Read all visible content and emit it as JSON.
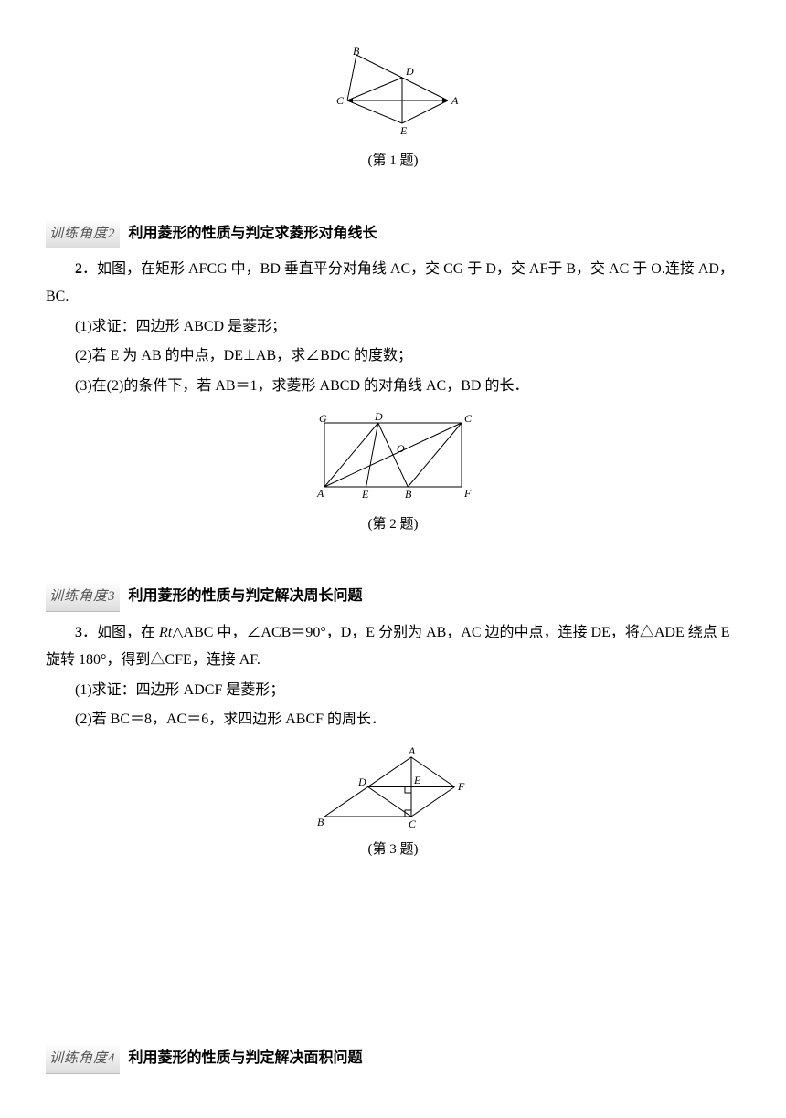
{
  "fig1": {
    "caption": "(第 1 题)",
    "labels": {
      "B": "B",
      "D": "D",
      "C": "C",
      "A": "A",
      "E": "E"
    },
    "stroke": "#000000",
    "fill": "none"
  },
  "section2": {
    "badge": "训练角度2",
    "title": "利用菱形的性质与判定求菱形对角线长",
    "num": "2",
    "intro": "．如图，在矩形 AFCG 中，BD 垂直平分对角线 AC，交 CG 于 D，交 AF于 B，交 AC 于 O.连接 AD，BC.",
    "q1": "(1)求证：四边形 ABCD 是菱形；",
    "q2": "(2)若 E 为 AB 的中点，DE⊥AB，求∠BDC 的度数；",
    "q3": "(3)在(2)的条件下，若 AB＝1，求菱形 ABCD 的对角线 AC，BD 的长．"
  },
  "fig2": {
    "caption": "(第 2 题)",
    "labels": {
      "G": "G",
      "D": "D",
      "C": "C",
      "A": "A",
      "E": "E",
      "B": "B",
      "F": "F",
      "O": "O"
    },
    "stroke": "#000000"
  },
  "section3": {
    "badge": "训练角度3",
    "title": "利用菱形的性质与判定解决周长问题",
    "num": "3",
    "intro": "．如图，在 Rt△ABC 中，∠ACB＝90°，D，E 分别为 AB，AC 边的中点，连接 DE，将△ADE 绕点 E 旋转 180°，得到△CFE，连接 AF.",
    "q1": "(1)求证：四边形 ADCF 是菱形；",
    "q2": "(2)若 BC＝8，AC＝6，求四边形 ABCF 的周长．"
  },
  "fig3": {
    "caption": "(第 3 题)",
    "labels": {
      "A": "A",
      "D": "D",
      "E": "E",
      "F": "F",
      "B": "B",
      "C": "C"
    },
    "stroke": "#000000"
  },
  "section4": {
    "badge": "训练角度4",
    "title": "利用菱形的性质与判定解决面积问题"
  }
}
